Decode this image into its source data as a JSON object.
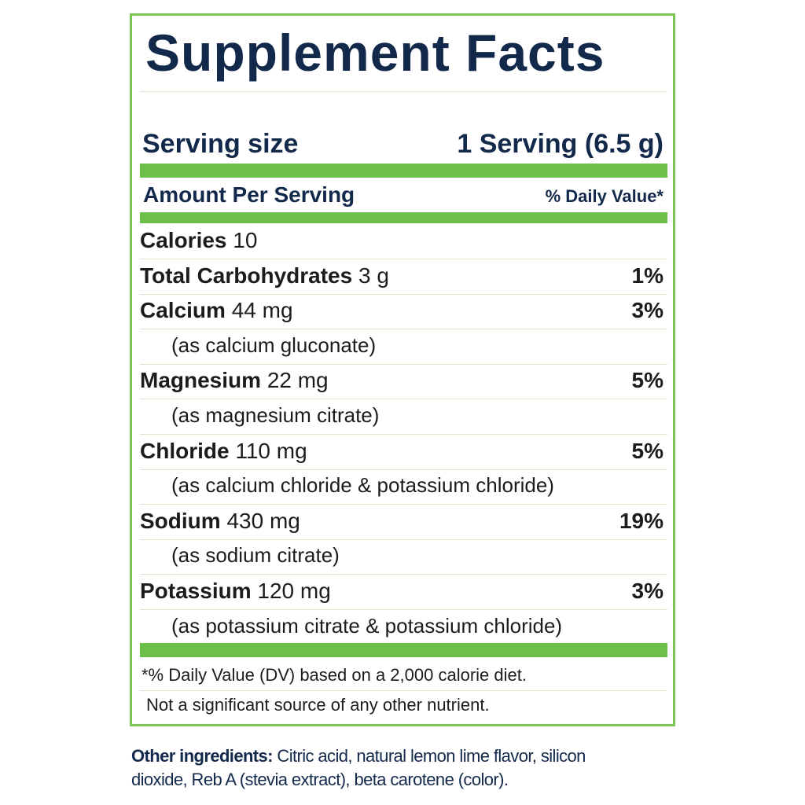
{
  "title": "Supplement Facts",
  "serving": {
    "label": "Serving size",
    "value": "1 Serving (6.5 g)"
  },
  "header": {
    "amount": "Amount Per Serving",
    "dv": "% Daily Value*"
  },
  "rows": [
    {
      "name": "Calories",
      "amount": "10"
    },
    {
      "name": "Total Carbohydrates",
      "amount": "3 g",
      "dv": "1%"
    },
    {
      "name": "Calcium",
      "amount": "44 mg",
      "dv": "3%",
      "source": "(as calcium gluconate)"
    },
    {
      "name": "Magnesium",
      "amount": "22 mg",
      "dv": "5%",
      "source": "(as magnesium citrate)"
    },
    {
      "name": "Chloride",
      "amount": "110 mg",
      "dv": "5%",
      "source": "(as calcium chloride & potassium chloride)"
    },
    {
      "name": "Sodium",
      "amount": "430 mg",
      "dv": "19%",
      "source": "(as sodium citrate)"
    },
    {
      "name": "Potassium",
      "amount": "120 mg",
      "dv": "3%",
      "source": "(as potassium citrate & potassium chloride)"
    }
  ],
  "footnotes": [
    "*% Daily Value (DV) based on a 2,000 calorie diet.",
    "Not a significant source of any other nutrient."
  ],
  "other_ingredients": {
    "label": "Other ingredients:",
    "text": "Citric acid, natural lemon lime flavor, silicon dioxide, Reb A (stevia extract), beta carotene (color)."
  }
}
